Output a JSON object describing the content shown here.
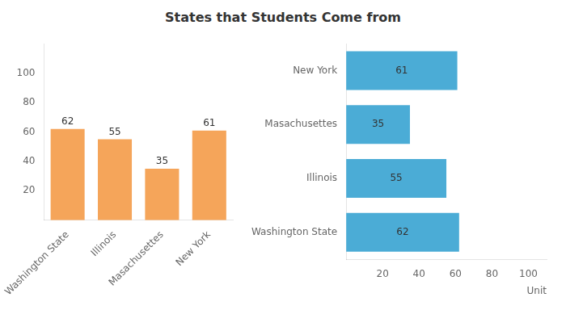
{
  "chart_data": [
    {
      "type": "bar",
      "title": "States that Students Come from",
      "categories": [
        "Washington State",
        "Illinois",
        "Masachusettes",
        "New York"
      ],
      "values": [
        62,
        55,
        35,
        61
      ],
      "color": "#F5A55A",
      "ylim": [
        0,
        120
      ],
      "yticks": [
        20,
        40,
        60,
        80,
        100
      ],
      "grid": false,
      "data_labels": true
    },
    {
      "type": "bar",
      "orientation": "horizontal",
      "categories": [
        "New York",
        "Masachusettes",
        "Illinois",
        "Washington State"
      ],
      "values": [
        61,
        35,
        55,
        62
      ],
      "color": "#4BACD6",
      "xlabel": "Unit",
      "xlim": [
        0,
        110
      ],
      "xticks": [
        20,
        40,
        60,
        80,
        100
      ],
      "grid": false,
      "data_labels": true
    }
  ]
}
